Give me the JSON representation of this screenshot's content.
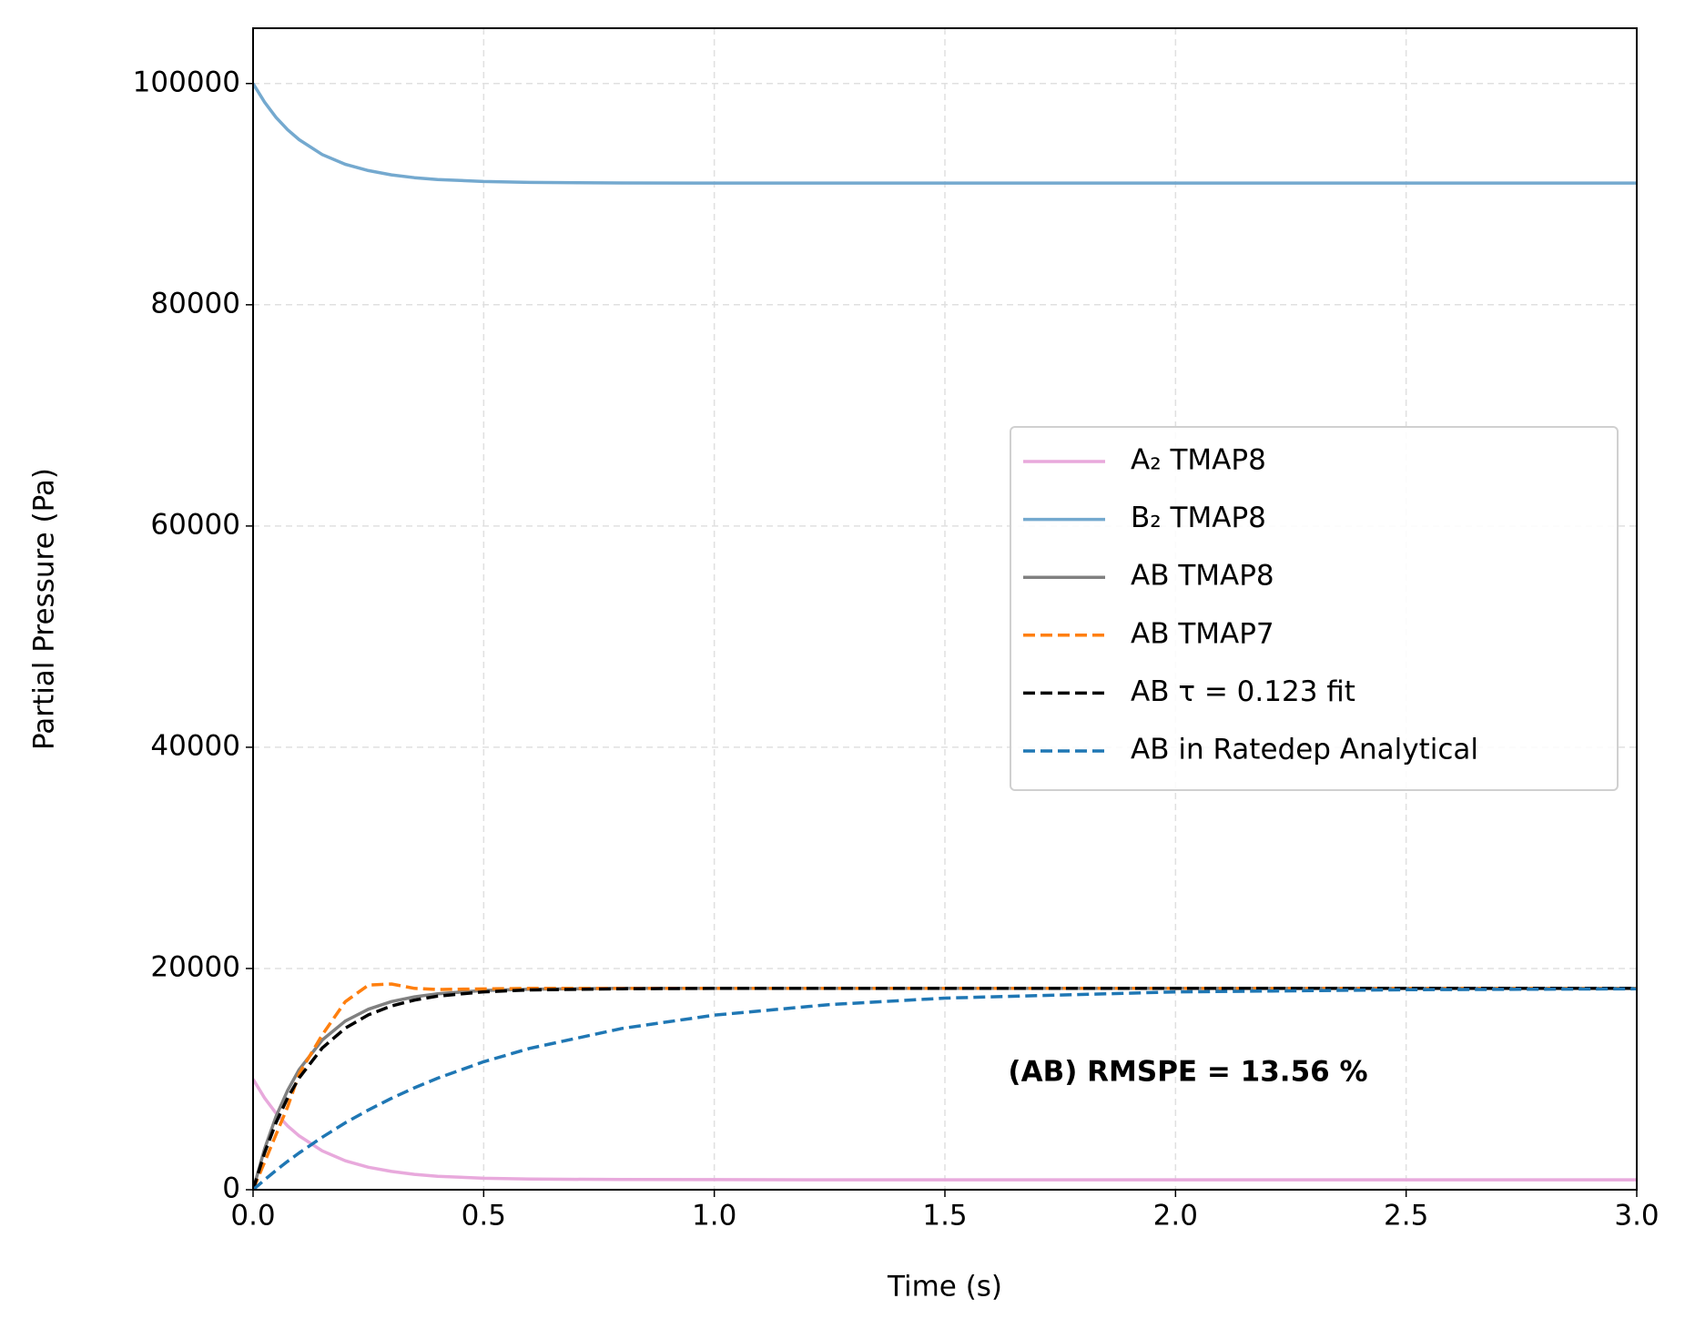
{
  "chart_data": {
    "type": "line",
    "x_label": "Time (s)",
    "y_label": "Partial Pressure (Pa)",
    "annotation": "(AB) RMSPE = 13.56 %",
    "xlim": [
      0,
      3
    ],
    "ylim": [
      0,
      105000
    ],
    "xticks": [
      {
        "value": 0,
        "label": "0.0"
      },
      0.5,
      {
        "value": 1,
        "label": "1.0"
      },
      1.5,
      {
        "value": 2,
        "label": "2.0"
      },
      2.5,
      {
        "value": 3,
        "label": "3.0"
      }
    ],
    "yticks": [
      0,
      20000,
      40000,
      60000,
      80000,
      100000
    ],
    "grid": true,
    "legend": "center right",
    "x": [
      0,
      0.025,
      0.05,
      0.075,
      0.1,
      0.15,
      0.2,
      0.25,
      0.3,
      0.35,
      0.4,
      0.5,
      0.6,
      0.8,
      1.0,
      1.25,
      1.5,
      2.0,
      2.5,
      3.0
    ],
    "series": [
      {
        "name": "A₂ TMAP8",
        "color": "#e8a9dc",
        "dashed": false,
        "values": [
          10000,
          8290,
          6900,
          5770,
          4860,
          3510,
          2620,
          2030,
          1650,
          1390,
          1220,
          1040,
          960,
          920,
          910,
          900,
          900,
          900,
          900,
          900
        ]
      },
      {
        "name": "B₂ TMAP8",
        "color": "#74a9cf",
        "dashed": false,
        "values": [
          100000,
          98310,
          96930,
          95820,
          94920,
          93580,
          92700,
          92130,
          91740,
          91490,
          91320,
          91140,
          91060,
          91010,
          91000,
          91000,
          91000,
          91000,
          91000,
          91000
        ]
      },
      {
        "name": "AB TMAP8",
        "color": "#808080",
        "dashed": false,
        "values": [
          0,
          3700,
          6640,
          8990,
          10870,
          13540,
          15250,
          16320,
          17010,
          17440,
          17720,
          18010,
          18120,
          18200,
          18200,
          18200,
          18200,
          18200,
          18200,
          18200
        ]
      },
      {
        "name": "AB TMAP7",
        "color": "#ff7f0e",
        "dashed": true,
        "values": [
          0,
          2500,
          5000,
          7500,
          10500,
          14000,
          17000,
          18500,
          18600,
          18200,
          18100,
          18150,
          18200,
          18200,
          18200,
          18200,
          18200,
          18200,
          18200,
          18200
        ]
      },
      {
        "name": "AB τ = 0.123 fit",
        "color": "#000000",
        "dashed": true,
        "values": [
          0,
          3350,
          6080,
          8310,
          10120,
          12810,
          14610,
          15810,
          16610,
          17140,
          17500,
          17890,
          18060,
          18170,
          18200,
          18200,
          18200,
          18200,
          18200,
          18200
        ]
      },
      {
        "name": "AB in Ratedep Analytical",
        "color": "#1f77b4",
        "dashed": true,
        "values": [
          0,
          900,
          1750,
          2570,
          3330,
          4750,
          6050,
          7210,
          8260,
          9220,
          10080,
          11570,
          12780,
          14580,
          15780,
          16740,
          17320,
          17880,
          18080,
          18160
        ]
      }
    ]
  }
}
